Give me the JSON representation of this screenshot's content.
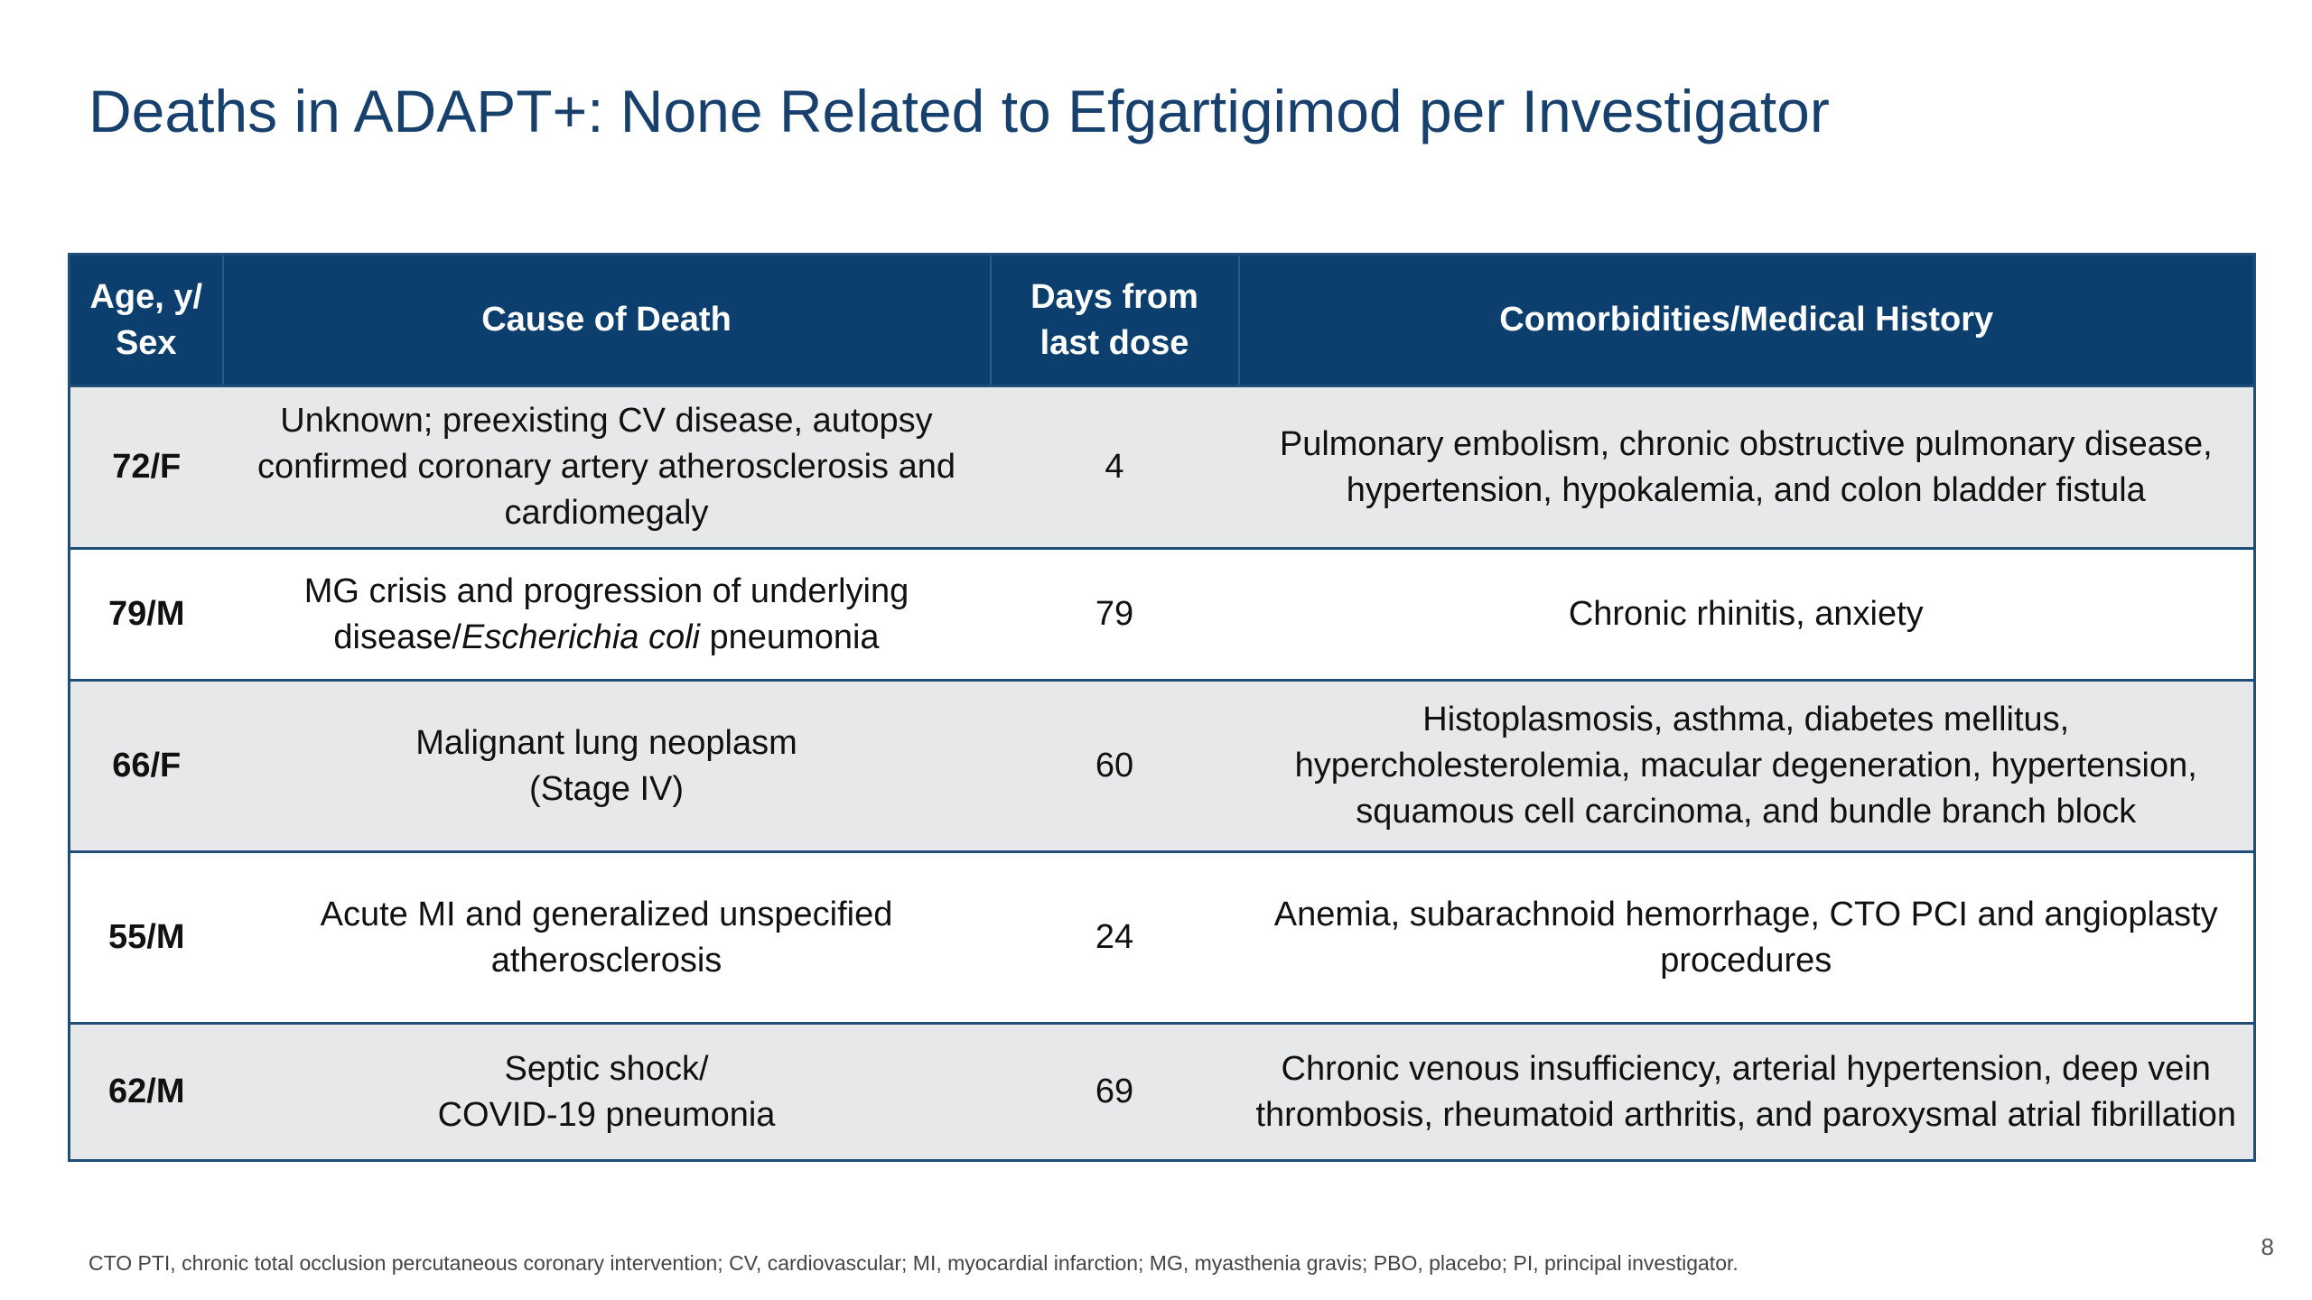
{
  "title": "Deaths in ADAPT+: None Related to Efgartigimod per Investigator",
  "table": {
    "headers": [
      "Age, y/ Sex",
      "Cause of Death",
      "Days from last dose",
      "Comorbidities/Medical History"
    ],
    "rows": [
      {
        "age_sex": "72/F",
        "cause": "Unknown; preexisting CV disease, autopsy confirmed coronary artery atherosclerosis and cardiomegaly",
        "days": "4",
        "history": "Pulmonary embolism, chronic obstructive pulmonary disease, hypertension, hypokalemia, and colon bladder fistula"
      },
      {
        "age_sex": "79/M",
        "cause_pre": "MG crisis and progression of underlying disease/",
        "cause_italic": "Escherichia coli",
        "cause_post": " pneumonia",
        "days": "79",
        "history": "Chronic rhinitis, anxiety"
      },
      {
        "age_sex": "66/F",
        "cause_line1": "Malignant lung neoplasm",
        "cause_line2": "(Stage IV)",
        "days": "60",
        "history": "Histoplasmosis, asthma, diabetes mellitus, hypercholesterolemia, macular degeneration, hypertension, squamous cell carcinoma, and bundle branch block"
      },
      {
        "age_sex": "55/M",
        "cause": "Acute MI and generalized unspecified atherosclerosis",
        "days": "24",
        "history": "Anemia, subarachnoid hemorrhage, CTO PCI and angioplasty procedures"
      },
      {
        "age_sex": "62/M",
        "cause_line1": "Septic shock/",
        "cause_line2": "COVID-19 pneumonia",
        "days": "69",
        "history": "Chronic venous insufficiency, arterial hypertension, deep vein thrombosis, rheumatoid arthritis, and paroxysmal atrial fibrillation"
      }
    ]
  },
  "footnote": "CTO PTI, chronic total occlusion percutaneous coronary intervention; CV, cardiovascular; MI, myocardial infarction; MG, myasthenia gravis; PBO, placebo; PI, principal investigator.",
  "page_number": "8",
  "colors": {
    "title": "#17406d",
    "header_bg": "#0d3f6e",
    "row_shade": "#e7e8ea",
    "border": "#1f4e79"
  }
}
